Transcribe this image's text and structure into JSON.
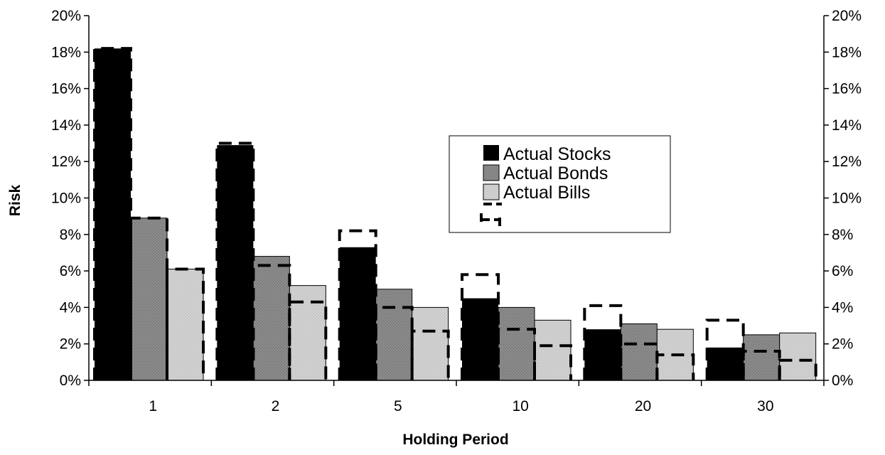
{
  "chart_data": {
    "type": "bar",
    "title": "",
    "xlabel": "Holding Period",
    "ylabel": "Risk",
    "categories": [
      "1",
      "2",
      "5",
      "10",
      "20",
      "30"
    ],
    "ylim": [
      0,
      20
    ],
    "y_tick_step": 2,
    "y_tick_suffix": "%",
    "secondary_y_axis": true,
    "grid": false,
    "legend_position": "center-right",
    "series": [
      {
        "name": "Actual Stocks",
        "values": [
          18.2,
          12.9,
          7.3,
          4.5,
          2.8,
          1.8
        ],
        "color": "#000000"
      },
      {
        "name": "Actual Bonds",
        "values": [
          8.9,
          6.8,
          5.0,
          4.0,
          3.1,
          2.5
        ],
        "color": "#8c8c8c"
      },
      {
        "name": "Actual Bills",
        "values": [
          6.1,
          5.2,
          4.0,
          3.3,
          2.8,
          2.6
        ],
        "color": "#d0d0d0"
      }
    ],
    "dashed_markers": [
      {
        "values": [
          18.2,
          13.0,
          8.2,
          5.8,
          4.1,
          3.3
        ]
      },
      {
        "values": [
          8.9,
          6.3,
          4.0,
          2.8,
          2.0,
          1.6
        ]
      },
      {
        "values": [
          6.1,
          4.3,
          2.7,
          1.9,
          1.4,
          1.1
        ]
      }
    ]
  }
}
